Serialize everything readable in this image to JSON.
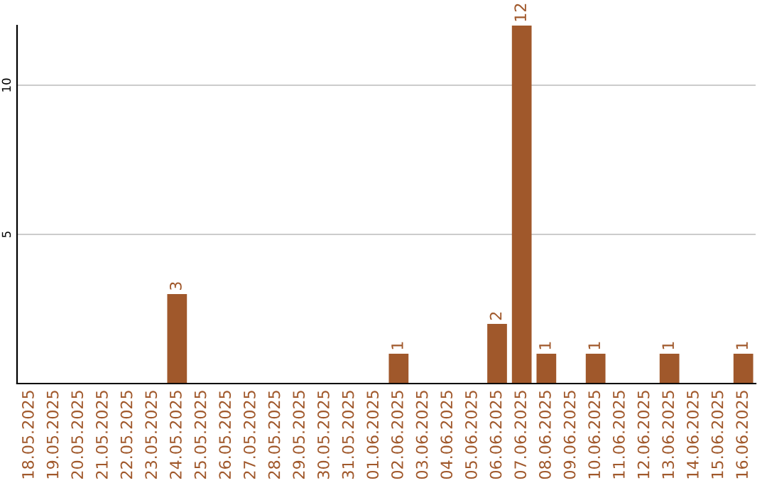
{
  "chart_data": {
    "type": "bar",
    "categories": [
      "18.05.2025",
      "19.05.2025",
      "20.05.2025",
      "21.05.2025",
      "22.05.2025",
      "23.05.2025",
      "24.05.2025",
      "25.05.2025",
      "26.05.2025",
      "27.05.2025",
      "28.05.2025",
      "29.05.2025",
      "30.05.2025",
      "31.05.2025",
      "01.06.2025",
      "02.06.2025",
      "03.06.2025",
      "04.06.2025",
      "05.06.2025",
      "06.06.2025",
      "07.06.2025",
      "08.06.2025",
      "09.06.2025",
      "10.06.2025",
      "11.06.2025",
      "12.06.2025",
      "13.06.2025",
      "14.06.2025",
      "15.06.2025",
      "16.06.2025"
    ],
    "values": [
      0,
      0,
      0,
      0,
      0,
      0,
      3,
      0,
      0,
      0,
      0,
      0,
      0,
      0,
      0,
      1,
      0,
      0,
      0,
      2,
      12,
      1,
      0,
      1,
      0,
      0,
      1,
      0,
      0,
      1
    ],
    "value_labels": [
      null,
      null,
      null,
      null,
      null,
      null,
      "3",
      null,
      null,
      null,
      null,
      null,
      null,
      null,
      null,
      "1",
      null,
      null,
      null,
      "2",
      "12",
      "1",
      null,
      "1",
      null,
      null,
      "1",
      null,
      null,
      "1"
    ],
    "color": "#a0582b",
    "ylim": [
      0,
      12
    ],
    "yticks": [
      5,
      10
    ],
    "grid": "y"
  }
}
